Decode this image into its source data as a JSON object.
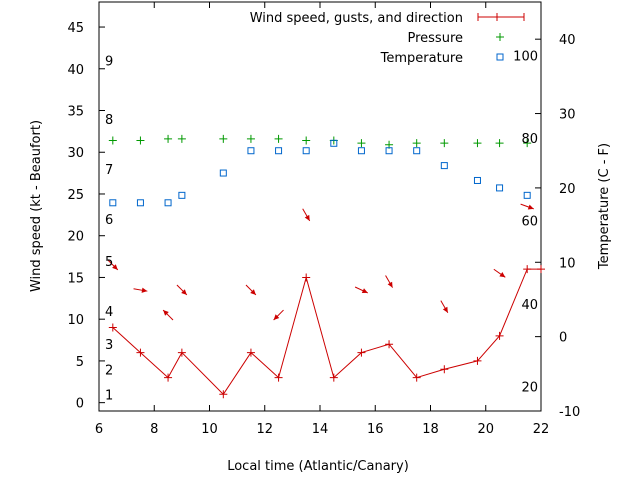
{
  "chart_data": {
    "type": "line",
    "xlabel": "Local time (Atlantic/Canary)",
    "ylabel_left": "Wind speed (kt - Beaufort)",
    "ylabel_right": "Temperature (C - F)",
    "xlim": [
      6,
      22
    ],
    "ylim_left": [
      -1,
      48
    ],
    "ylim_right": [
      -10,
      45
    ],
    "x_ticks": [
      6,
      8,
      10,
      12,
      14,
      16,
      18,
      20,
      22
    ],
    "y_ticks_left": [
      0,
      5,
      10,
      15,
      20,
      25,
      30,
      35,
      40,
      45
    ],
    "y_ticks_right": [
      -10,
      0,
      10,
      20,
      30,
      40
    ],
    "beaufort_labels": [
      {
        "label": "1",
        "y": 1
      },
      {
        "label": "2",
        "y": 4
      },
      {
        "label": "3",
        "y": 7
      },
      {
        "label": "4",
        "y": 11
      },
      {
        "label": "5",
        "y": 17
      },
      {
        "label": "6",
        "y": 22
      },
      {
        "label": "7",
        "y": 28
      },
      {
        "label": "8",
        "y": 34
      },
      {
        "label": "9",
        "y": 41
      }
    ],
    "fahrenheit_labels": [
      {
        "label": "20",
        "y": -6.7
      },
      {
        "label": "40",
        "y": 4.4
      },
      {
        "label": "60",
        "y": 15.6
      },
      {
        "label": "80",
        "y": 26.7
      },
      {
        "label": "100",
        "y": 37.8
      }
    ],
    "legend": [
      {
        "label": "Wind speed, gusts, and direction",
        "color": "#cc0000"
      },
      {
        "label": "Pressure",
        "color": "#009900"
      },
      {
        "label": "Temperature",
        "color": "#0066cc"
      }
    ],
    "series": [
      {
        "name": "Wind speed, gusts, and direction",
        "color": "#cc0000",
        "axis": "left",
        "x": [
          6.5,
          7.5,
          8.5,
          9.0,
          10.5,
          11.5,
          12.5,
          13.5,
          14.5,
          15.5,
          16.5,
          17.5,
          18.5,
          19.7,
          20.5,
          21.5,
          22.0
        ],
        "y": [
          9,
          6,
          3,
          6,
          1,
          6,
          3,
          15,
          3,
          6,
          7,
          3,
          4,
          5,
          8,
          16,
          16
        ],
        "direction_deg": [
          315,
          280,
          135,
          315,
          null,
          315,
          45,
          330,
          null,
          295,
          330,
          null,
          330,
          null,
          305,
          290,
          null
        ]
      },
      {
        "name": "Pressure",
        "color": "#009900",
        "axis": "left",
        "x": [
          6.5,
          7.5,
          8.5,
          9.0,
          10.5,
          11.5,
          12.5,
          13.5,
          14.5,
          15.5,
          16.5,
          17.5,
          18.5,
          19.7,
          20.5,
          21.5
        ],
        "y": [
          31.4,
          31.4,
          31.6,
          31.6,
          31.6,
          31.6,
          31.6,
          31.4,
          31.4,
          31.1,
          30.9,
          31.1,
          31.1,
          31.1,
          31.1,
          31.1
        ]
      },
      {
        "name": "Temperature",
        "color": "#0066cc",
        "axis": "right",
        "x": [
          6.5,
          7.5,
          8.5,
          9.0,
          10.5,
          11.5,
          12.5,
          13.5,
          14.5,
          15.5,
          16.5,
          17.5,
          18.5,
          19.7,
          20.5,
          21.5
        ],
        "y": [
          18,
          18,
          18,
          19,
          22,
          25,
          25,
          25,
          26,
          25,
          25,
          25,
          23,
          21,
          20,
          19
        ]
      }
    ]
  }
}
